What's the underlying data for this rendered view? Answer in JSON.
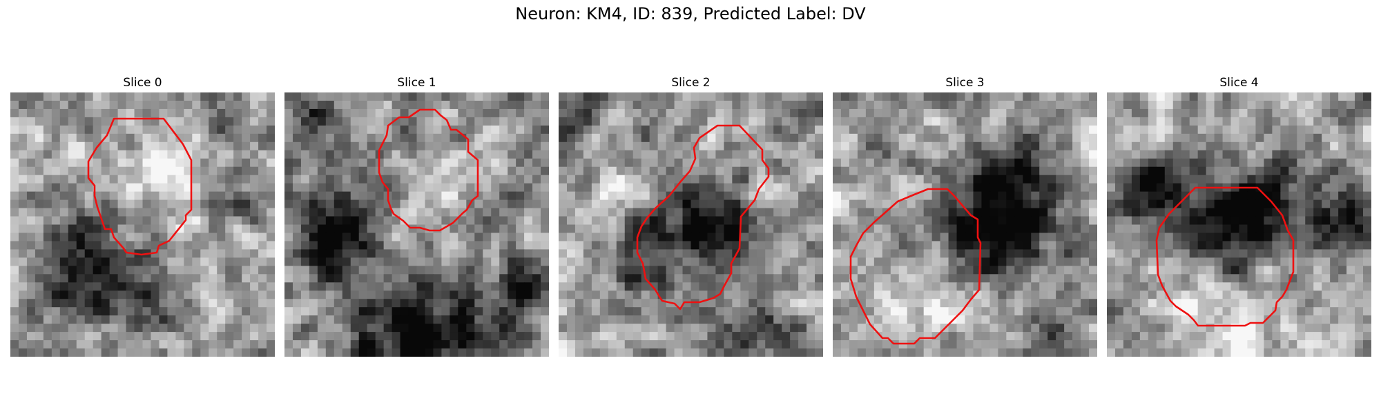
{
  "figure": {
    "title": "Neuron: KM4, ID: 839, Predicted Label: DV"
  },
  "colors": {
    "contour": "#ee1111",
    "background": "#ffffff"
  },
  "panels": [
    {
      "title": "Slice 0",
      "dark_blob": "lower-left",
      "contour": "upper-center"
    },
    {
      "title": "Slice 1",
      "dark_blob": "left and bottom",
      "contour": "center"
    },
    {
      "title": "Slice 2",
      "dark_blob": "center",
      "contour": "diagonal elongated"
    },
    {
      "title": "Slice 3",
      "dark_blob": "upper-right",
      "contour": "lower-left"
    },
    {
      "title": "Slice 4",
      "dark_blob": "upper band",
      "contour": "center"
    }
  ]
}
